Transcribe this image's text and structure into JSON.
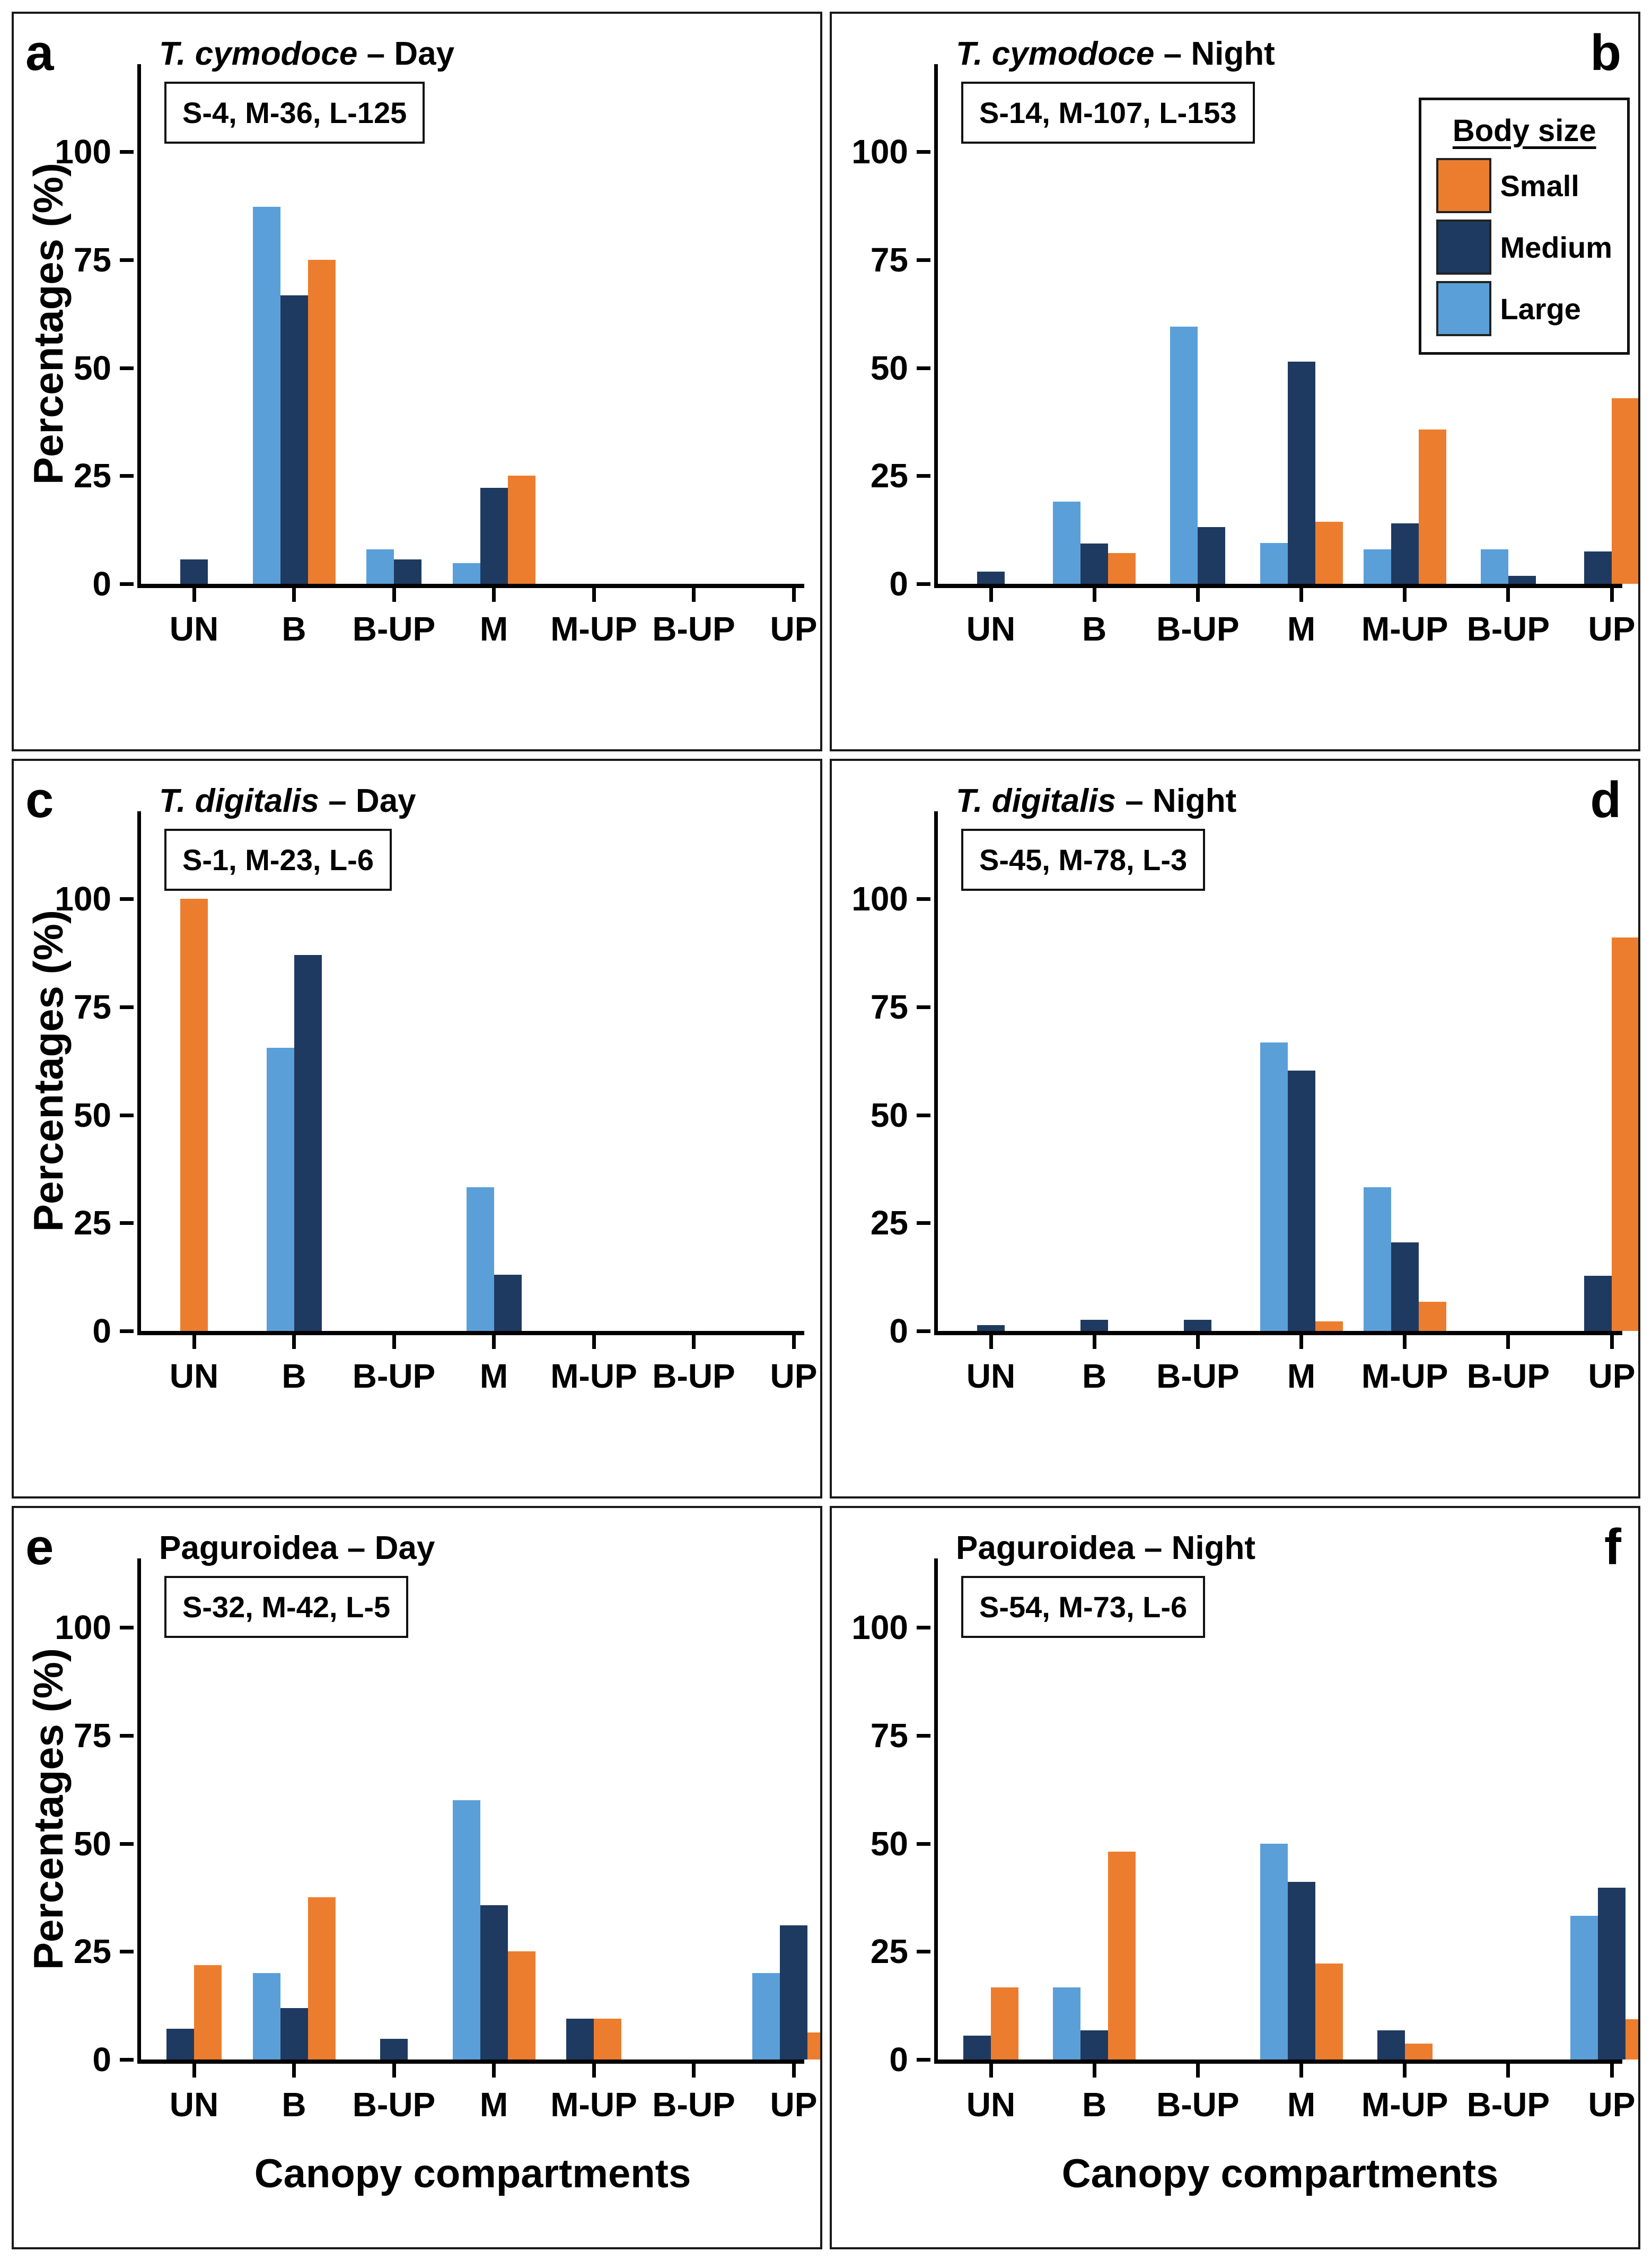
{
  "figure": {
    "ylabel": "Percentages (%)",
    "xlabel": "Canopy compartments",
    "categories": [
      "UN",
      "B",
      "B-UP",
      "M",
      "M-UP",
      "B-UP",
      "UP"
    ],
    "y_ticks": [
      0,
      25,
      50,
      75,
      100
    ],
    "colors": {
      "small": "#EC7D2E",
      "medium": "#1F3A60",
      "large": "#5B9FD8"
    },
    "legend": {
      "title": "Body size",
      "items": [
        {
          "label": "Small",
          "color": "#EC7D2E"
        },
        {
          "label": "Medium",
          "color": "#1F3A60"
        },
        {
          "label": "Large",
          "color": "#5B9FD8"
        }
      ]
    }
  },
  "chart_data": [
    {
      "type": "bar",
      "panel_letter": "a",
      "letter_side": "left",
      "species": "T. cymodoce",
      "species_italic": true,
      "period_label": "– Day",
      "sample_sizes": "S-4, M-36, L-125",
      "show_legend": false,
      "categories": [
        "UN",
        "B",
        "B-UP",
        "M",
        "M-UP",
        "B-UP",
        "UP"
      ],
      "ylim": [
        0,
        100
      ],
      "grid": false,
      "series": [
        {
          "name": "Large",
          "values": [
            null,
            87.2,
            8,
            4.8,
            null,
            null,
            null
          ]
        },
        {
          "name": "Medium",
          "values": [
            5.6,
            66.7,
            5.6,
            22.2,
            null,
            null,
            null
          ]
        },
        {
          "name": "Small",
          "values": [
            null,
            75,
            null,
            25,
            null,
            null,
            null
          ]
        }
      ]
    },
    {
      "type": "bar",
      "panel_letter": "b",
      "letter_side": "right",
      "species": "T. cymodoce",
      "species_italic": true,
      "period_label": "– Night",
      "sample_sizes": "S-14, M-107, L-153",
      "show_legend": true,
      "categories": [
        "UN",
        "B",
        "B-UP",
        "M",
        "M-UP",
        "B-UP",
        "UP"
      ],
      "ylim": [
        0,
        100
      ],
      "grid": false,
      "series": [
        {
          "name": "Large",
          "values": [
            null,
            19,
            59.5,
            9.5,
            8,
            8,
            null
          ]
        },
        {
          "name": "Medium",
          "values": [
            2.8,
            9.3,
            13.1,
            51.4,
            14,
            1.9,
            7.5
          ]
        },
        {
          "name": "Small",
          "values": [
            null,
            7.1,
            null,
            14.3,
            35.7,
            null,
            42.9
          ]
        }
      ]
    },
    {
      "type": "bar",
      "panel_letter": "c",
      "letter_side": "left",
      "species": "T. digitalis",
      "species_italic": true,
      "period_label": "– Day",
      "sample_sizes": "S-1, M-23, L-6",
      "show_legend": false,
      "categories": [
        "UN",
        "B",
        "B-UP",
        "M",
        "M-UP",
        "B-UP",
        "UP"
      ],
      "ylim": [
        0,
        100
      ],
      "grid": false,
      "series": [
        {
          "name": "Large",
          "values": [
            null,
            65.5,
            null,
            33.3,
            null,
            null,
            null
          ]
        },
        {
          "name": "Medium",
          "values": [
            null,
            87,
            null,
            13,
            null,
            null,
            null
          ]
        },
        {
          "name": "Small",
          "values": [
            100,
            null,
            null,
            null,
            null,
            null,
            null
          ]
        }
      ]
    },
    {
      "type": "bar",
      "panel_letter": "d",
      "letter_side": "right",
      "species": "T. digitalis",
      "species_italic": true,
      "period_label": "– Night",
      "sample_sizes": "S-45, M-78, L-3",
      "show_legend": false,
      "categories": [
        "UN",
        "B",
        "B-UP",
        "M",
        "M-UP",
        "B-UP",
        "UP"
      ],
      "ylim": [
        0,
        100
      ],
      "grid": false,
      "series": [
        {
          "name": "Large",
          "values": [
            null,
            null,
            null,
            66.7,
            33.3,
            null,
            null
          ]
        },
        {
          "name": "Medium",
          "values": [
            1.3,
            2.6,
            2.6,
            60.3,
            20.5,
            null,
            12.8
          ]
        },
        {
          "name": "Small",
          "values": [
            null,
            null,
            null,
            2.2,
            6.7,
            null,
            91.1
          ]
        }
      ]
    },
    {
      "type": "bar",
      "panel_letter": "e",
      "letter_side": "left",
      "species": "Paguroidea",
      "species_italic": false,
      "period_label": "– Day",
      "sample_sizes": "S-32, M-42, L-5",
      "show_legend": false,
      "categories": [
        "UN",
        "B",
        "B-UP",
        "M",
        "M-UP",
        "B-UP",
        "UP"
      ],
      "ylim": [
        0,
        100
      ],
      "grid": false,
      "series": [
        {
          "name": "Large",
          "values": [
            null,
            20,
            null,
            60,
            null,
            null,
            20
          ]
        },
        {
          "name": "Medium",
          "values": [
            7.1,
            11.9,
            4.8,
            35.7,
            9.5,
            null,
            31
          ]
        },
        {
          "name": "Small",
          "values": [
            21.9,
            37.5,
            null,
            25,
            9.4,
            null,
            6.3
          ]
        }
      ]
    },
    {
      "type": "bar",
      "panel_letter": "f",
      "letter_side": "right",
      "species": "Paguroidea",
      "species_italic": false,
      "period_label": "– Night",
      "sample_sizes": "S-54, M-73, L-6",
      "show_legend": false,
      "categories": [
        "UN",
        "B",
        "B-UP",
        "M",
        "M-UP",
        "B-UP",
        "UP"
      ],
      "ylim": [
        0,
        100
      ],
      "grid": false,
      "series": [
        {
          "name": "Large",
          "values": [
            null,
            16.7,
            null,
            50,
            null,
            null,
            33.3
          ]
        },
        {
          "name": "Medium",
          "values": [
            5.5,
            6.8,
            null,
            41.1,
            6.8,
            null,
            39.7
          ]
        },
        {
          "name": "Small",
          "values": [
            16.7,
            48.1,
            null,
            22.2,
            3.7,
            null,
            9.3
          ]
        }
      ]
    }
  ]
}
